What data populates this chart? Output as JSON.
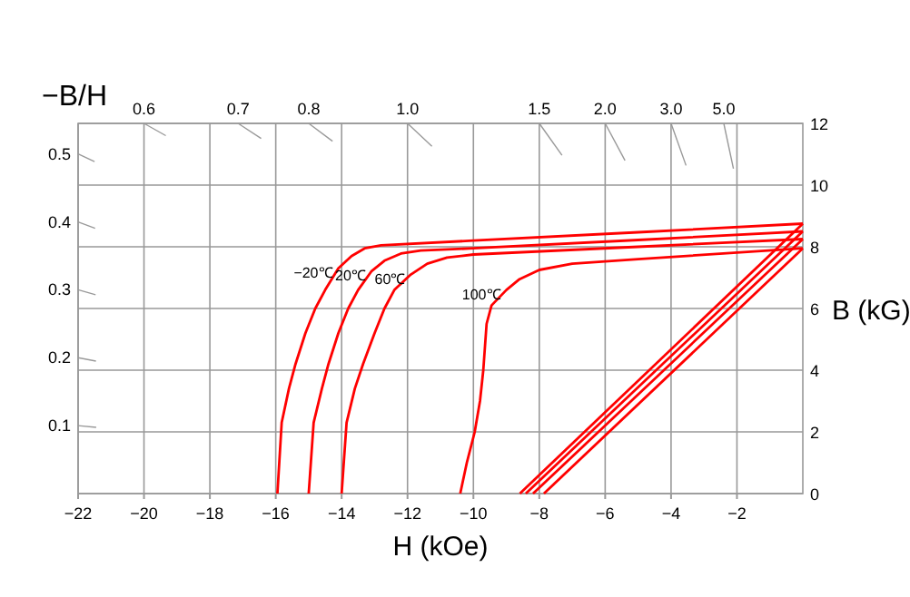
{
  "chart_data": {
    "type": "line",
    "xlabel": "H (kOe)",
    "ylabel": "B (kG)",
    "y2label": "−B/H",
    "xlim": [
      -22,
      0
    ],
    "xticks": [
      -22,
      -20,
      -18,
      -16,
      -14,
      -12,
      -10,
      -8,
      -6,
      -4,
      -2
    ],
    "ylim": [
      0,
      12
    ],
    "yticks": [
      0,
      2,
      4,
      6,
      8,
      10,
      12
    ],
    "annotations": [
      "0.6",
      "0.7",
      "0.8",
      "1.0",
      "1.5",
      "2.0",
      "3.0",
      "5.0"
    ],
    "y2lim": [
      0,
      0.545
    ],
    "y2ticks": [
      0.1,
      0.2,
      0.3,
      0.4,
      0.5
    ],
    "grid": true,
    "legend": false,
    "marker": "none",
    "line_style": "solid",
    "series": [
      {
        "name": "−20℃",
        "color": "#ff0000",
        "x": [
          -15.95,
          -15.82,
          -15.6,
          -15.4,
          -15.1,
          -14.8,
          -14.5,
          -14.1,
          -13.7,
          -13.3,
          -12.8,
          -10,
          -5,
          0
        ],
        "values": [
          0,
          2.3,
          3.4,
          4.2,
          5.2,
          6.0,
          6.6,
          7.3,
          7.7,
          7.95,
          8.05,
          8.2,
          8.47,
          8.75
        ]
      },
      {
        "name": "20℃",
        "color": "#ff0000",
        "x": [
          -15,
          -14.85,
          -14.6,
          -14.4,
          -14.1,
          -13.8,
          -13.5,
          -13.1,
          -12.7,
          -12.2,
          -11.6,
          -10,
          -5,
          0
        ],
        "values": [
          0,
          2.3,
          3.4,
          4.2,
          5.2,
          6.0,
          6.6,
          7.2,
          7.55,
          7.78,
          7.88,
          7.95,
          8.22,
          8.5
        ]
      },
      {
        "name": "60℃",
        "color": "#ff0000",
        "x": [
          -14,
          -13.85,
          -13.6,
          -13.35,
          -13.0,
          -12.7,
          -12.4,
          -11.9,
          -11.4,
          -10.8,
          -10,
          -5,
          0
        ],
        "values": [
          0,
          2.3,
          3.4,
          4.2,
          5.2,
          6.0,
          6.6,
          7.1,
          7.45,
          7.65,
          7.75,
          8.0,
          8.25
        ]
      },
      {
        "name": "100℃",
        "color": "#ff0000",
        "x": [
          -10.4,
          -10.2,
          -9.96,
          -9.8,
          -9.7,
          -9.6,
          -9.45,
          -9.0,
          -8.6,
          -8.0,
          -7,
          -5,
          0
        ],
        "values": [
          0,
          1,
          2,
          3,
          4,
          5.5,
          6.1,
          6.6,
          6.95,
          7.25,
          7.45,
          7.6,
          7.95
        ]
      },
      {
        "color": "#ff0000",
        "x": [
          -8.59,
          0
        ],
        "values": [
          0,
          8.75
        ]
      },
      {
        "color": "#ff0000",
        "x": [
          -8.41,
          0
        ],
        "values": [
          0,
          8.5
        ]
      },
      {
        "color": "#ff0000",
        "x": [
          -8.19,
          0
        ],
        "values": [
          0,
          8.25
        ]
      },
      {
        "color": "#ff0000",
        "x": [
          -7.86,
          0
        ],
        "values": [
          0,
          7.95
        ]
      }
    ]
  }
}
